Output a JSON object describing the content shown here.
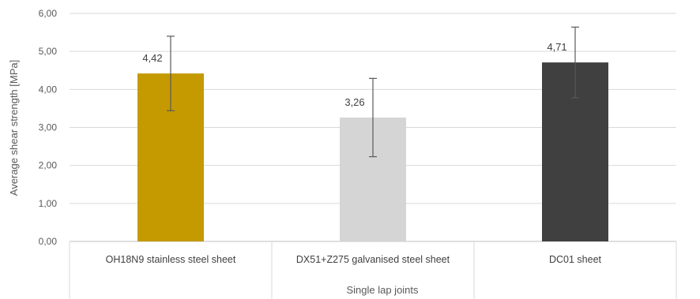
{
  "chart_data": {
    "type": "bar",
    "title": "",
    "xlabel": "Single lap joints",
    "ylabel": "Average shear strength [MPa]",
    "ylim": [
      0,
      6
    ],
    "yticks": [
      0,
      1,
      2,
      3,
      4,
      5,
      6
    ],
    "ytick_labels": [
      "0,00",
      "1,00",
      "2,00",
      "3,00",
      "4,00",
      "5,00",
      "6,00"
    ],
    "categories": [
      "OH18N9 stainless steel sheet",
      "DX51+Z275 galvanised steel sheet",
      "DC01 sheet"
    ],
    "values": [
      4.42,
      3.26,
      4.71
    ],
    "value_labels": [
      "4,42",
      "3,26",
      "4,71"
    ],
    "errors": [
      0.98,
      1.03,
      0.93
    ],
    "colors": [
      "#C49A00",
      "#D5D5D5",
      "#404040"
    ],
    "grid": true,
    "legend": "none"
  }
}
